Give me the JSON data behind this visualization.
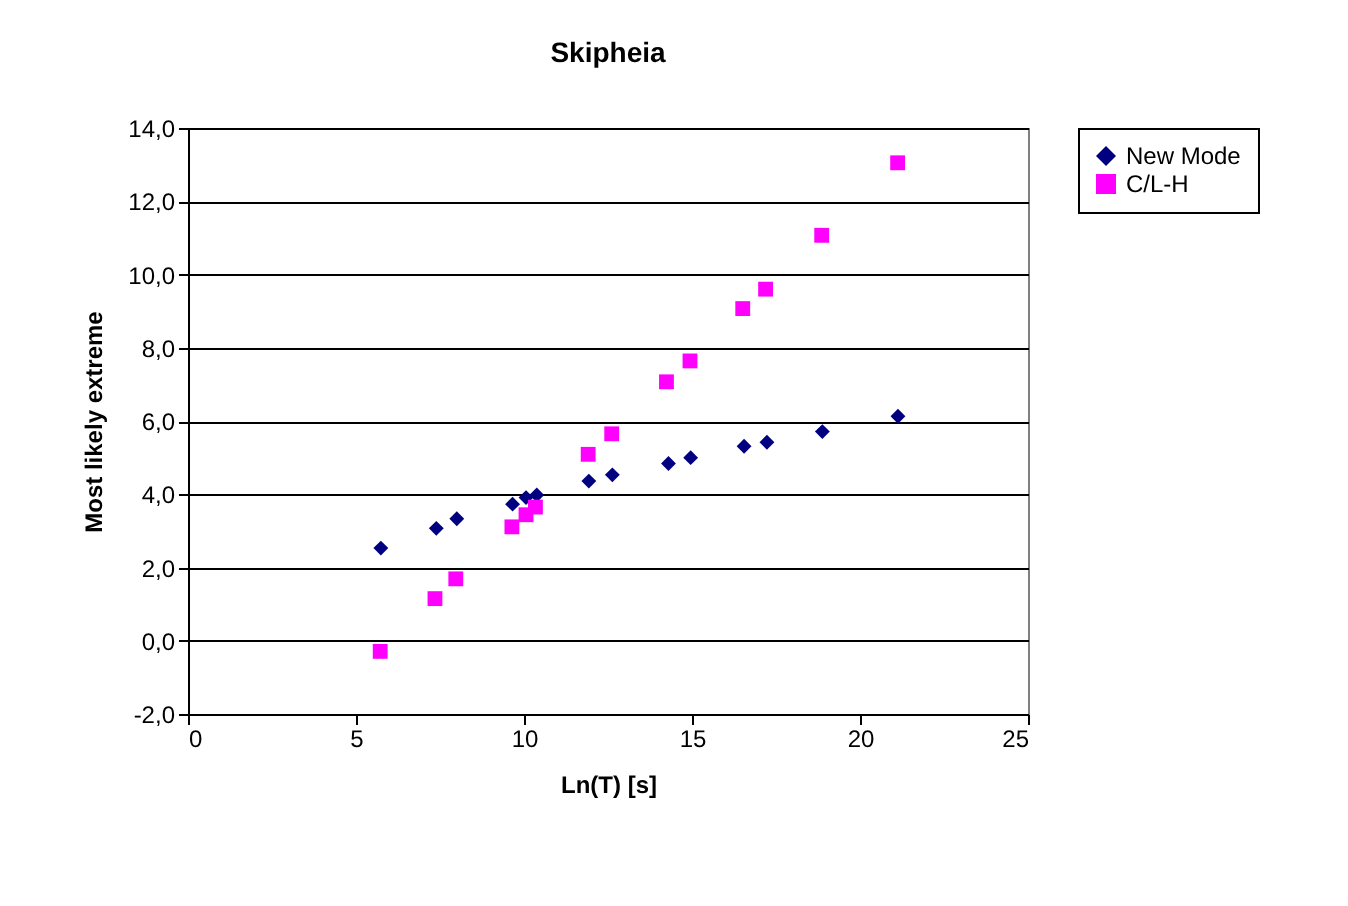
{
  "chart_data": {
    "type": "scatter",
    "title": "Skipheia",
    "xlabel": "Ln(T) [s]",
    "ylabel": "Most likely extreme",
    "xlim": [
      0,
      25
    ],
    "xticks": [
      0,
      5,
      10,
      15,
      20,
      25
    ],
    "ylim": [
      -2,
      14
    ],
    "yticks": [
      {
        "value": -2,
        "label": "-2,0"
      },
      {
        "value": 0,
        "label": "0,0"
      },
      {
        "value": 2,
        "label": "2,0"
      },
      {
        "value": 4,
        "label": "4,0"
      },
      {
        "value": 6,
        "label": "6,0"
      },
      {
        "value": 8,
        "label": "8,0"
      },
      {
        "value": 10,
        "label": "10,0"
      },
      {
        "value": 12,
        "label": "12,0"
      },
      {
        "value": 14,
        "label": "14,0"
      }
    ],
    "grid": "y",
    "legend": "right",
    "series": [
      {
        "name": "New Mode",
        "color": "#000080",
        "marker": "diamond",
        "x": [
          5.74,
          7.39,
          8.0,
          9.66,
          10.06,
          10.38,
          11.93,
          12.63,
          14.3,
          14.96,
          16.55,
          17.23,
          18.88,
          21.13
        ],
        "values": [
          2.53,
          3.07,
          3.33,
          3.73,
          3.91,
          3.98,
          4.36,
          4.53,
          4.84,
          5.0,
          5.31,
          5.42,
          5.71,
          6.13
        ]
      },
      {
        "name": "C/L-H",
        "color": "#ff00ff",
        "marker": "square",
        "x": [
          5.72,
          7.35,
          7.97,
          9.64,
          10.06,
          10.34,
          11.91,
          12.61,
          14.24,
          14.94,
          16.51,
          17.19,
          18.86,
          21.12
        ],
        "values": [
          -0.29,
          1.15,
          1.69,
          3.11,
          3.44,
          3.65,
          5.09,
          5.65,
          7.07,
          7.64,
          9.07,
          9.6,
          11.07,
          13.05
        ]
      }
    ]
  }
}
